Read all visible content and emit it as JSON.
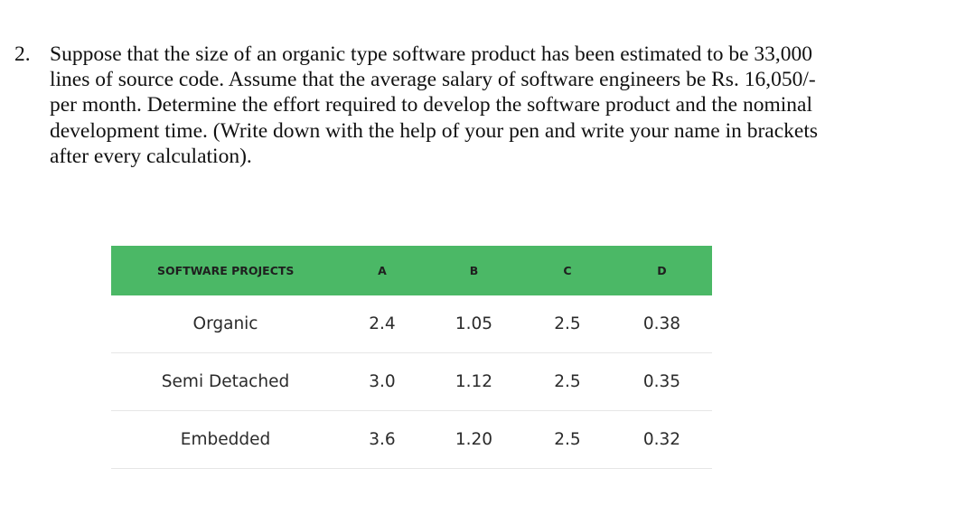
{
  "question": {
    "number": "2.",
    "lines": [
      "Suppose that the size of an organic type software product has been estimated to be 33,000",
      "lines of source code. Assume that the average salary of software engineers be Rs. 16,050/-",
      "per month. Determine the effort required to develop the software product and the nominal",
      "development time. (Write down with the help of your pen and write your name in brackets",
      "after every calculation)."
    ]
  },
  "table": {
    "headers": [
      "SOFTWARE PROJECTS",
      "A",
      "B",
      "C",
      "D"
    ],
    "rows": [
      [
        "Organic",
        "2.4",
        "1.05",
        "2.5",
        "0.38"
      ],
      [
        "Semi Detached",
        "3.0",
        "1.12",
        "2.5",
        "0.35"
      ],
      [
        "Embedded",
        "3.6",
        "1.20",
        "2.5",
        "0.32"
      ]
    ],
    "header_color": "#4bb866"
  }
}
